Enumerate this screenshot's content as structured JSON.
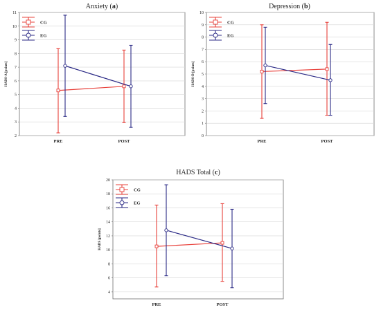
{
  "figure": {
    "panels": [
      "panel_a",
      "panel_b",
      "panel_c"
    ]
  },
  "chart_data": [
    {
      "id": "panel_a",
      "type": "line",
      "title_text": "Anxiety",
      "title_letter": "a",
      "ylabel": "HADS-A [points]",
      "categories": [
        "PRE",
        "POST"
      ],
      "ylim": [
        2,
        11
      ],
      "yticks": [
        2,
        3,
        4,
        5,
        6,
        7,
        8,
        9,
        10,
        11
      ],
      "grid": true,
      "legend_position": "top-left",
      "series": [
        {
          "name": "CG",
          "color": "#e8403a",
          "marker": "square",
          "values": [
            5.3,
            5.6
          ],
          "lower": [
            2.2,
            2.95
          ],
          "upper": [
            8.35,
            8.25
          ]
        },
        {
          "name": "EG",
          "color": "#2b2a86",
          "marker": "circle",
          "values": [
            7.1,
            5.6
          ],
          "lower": [
            3.4,
            2.6
          ],
          "upper": [
            10.8,
            8.6
          ]
        }
      ]
    },
    {
      "id": "panel_b",
      "type": "line",
      "title_text": "Depression",
      "title_letter": "b",
      "ylabel": "HADS-D [points]",
      "categories": [
        "PRE",
        "POST"
      ],
      "ylim": [
        0,
        10
      ],
      "yticks": [
        0,
        1,
        2,
        3,
        4,
        5,
        6,
        7,
        8,
        9,
        10
      ],
      "grid": true,
      "legend_position": "top-left",
      "series": [
        {
          "name": "CG",
          "color": "#e8403a",
          "marker": "square",
          "values": [
            5.2,
            5.4
          ],
          "lower": [
            1.4,
            1.65
          ],
          "upper": [
            9.0,
            9.2
          ]
        },
        {
          "name": "EG",
          "color": "#2b2a86",
          "marker": "circle",
          "values": [
            5.7,
            4.5
          ],
          "lower": [
            2.6,
            1.65
          ],
          "upper": [
            8.8,
            7.4
          ]
        }
      ]
    },
    {
      "id": "panel_c",
      "type": "line",
      "title_text": "HADS Total",
      "title_letter": "c",
      "ylabel": "HADS [points]",
      "categories": [
        "PRE",
        "POST"
      ],
      "ylim": [
        3,
        20
      ],
      "yticks": [
        4,
        6,
        8,
        10,
        12,
        14,
        16,
        18,
        20
      ],
      "grid": true,
      "legend_position": "top-left",
      "series": [
        {
          "name": "CG",
          "color": "#e8403a",
          "marker": "square",
          "values": [
            10.5,
            11.0
          ],
          "lower": [
            4.7,
            5.5
          ],
          "upper": [
            16.4,
            16.6
          ]
        },
        {
          "name": "EG",
          "color": "#2b2a86",
          "marker": "circle",
          "values": [
            12.8,
            10.2
          ],
          "lower": [
            6.3,
            4.6
          ],
          "upper": [
            19.3,
            15.8
          ]
        }
      ]
    }
  ]
}
